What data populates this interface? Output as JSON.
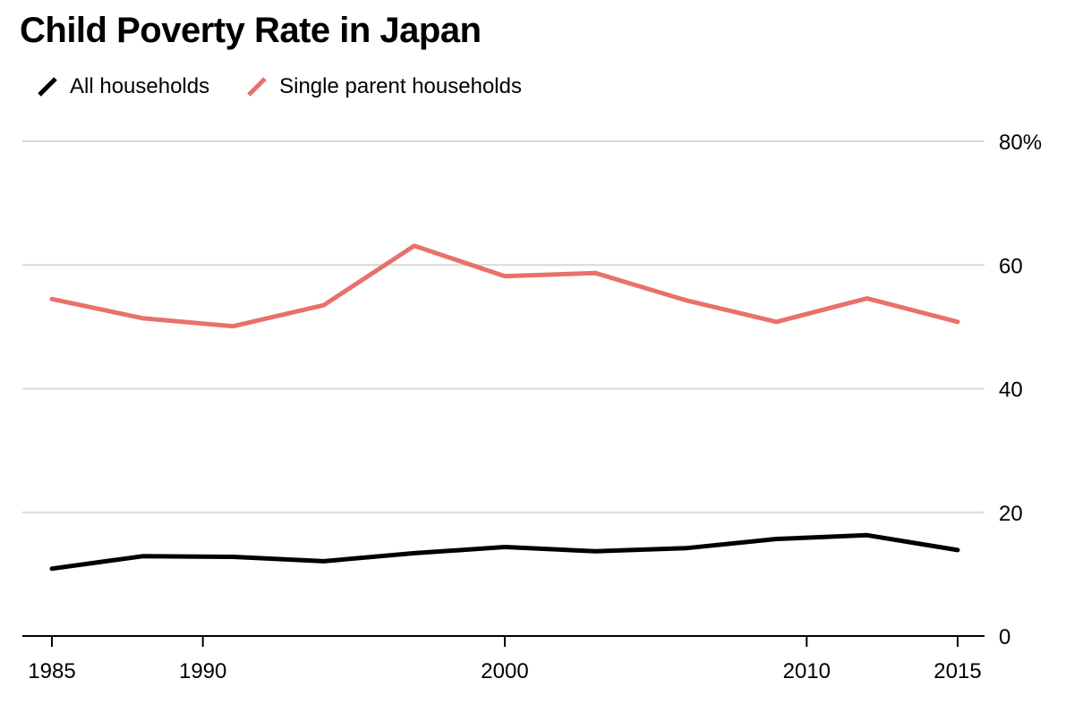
{
  "chart_data": {
    "type": "line",
    "title": "Child Poverty Rate in Japan",
    "xlabel": "",
    "ylabel": "",
    "x": [
      1985,
      1988,
      1991,
      1994,
      1997,
      2000,
      2003,
      2006,
      2009,
      2012,
      2015
    ],
    "series": [
      {
        "name": "All households",
        "color": "#000000",
        "values": [
          10.9,
          12.9,
          12.8,
          12.1,
          13.4,
          14.4,
          13.7,
          14.2,
          15.7,
          16.3,
          13.9
        ]
      },
      {
        "name": "Single parent households",
        "color": "#e8716b",
        "values": [
          54.5,
          51.4,
          50.1,
          53.5,
          63.1,
          58.2,
          58.7,
          54.3,
          50.8,
          54.6,
          50.8
        ]
      }
    ],
    "xticks": [
      {
        "value": 1985,
        "label": "1985"
      },
      {
        "value": 1990,
        "label": "1990"
      },
      {
        "value": 2000,
        "label": "2000"
      },
      {
        "value": 2010,
        "label": "2010"
      },
      {
        "value": 2015,
        "label": "2015"
      }
    ],
    "yticks": [
      {
        "value": 0,
        "label": "0"
      },
      {
        "value": 20,
        "label": "20"
      },
      {
        "value": 40,
        "label": "40"
      },
      {
        "value": 60,
        "label": "60"
      },
      {
        "value": 80,
        "label": "80%"
      }
    ],
    "xlim": [
      1985,
      2015
    ],
    "ylim": [
      0,
      80
    ],
    "grid": true,
    "legend_position": "top-left"
  }
}
